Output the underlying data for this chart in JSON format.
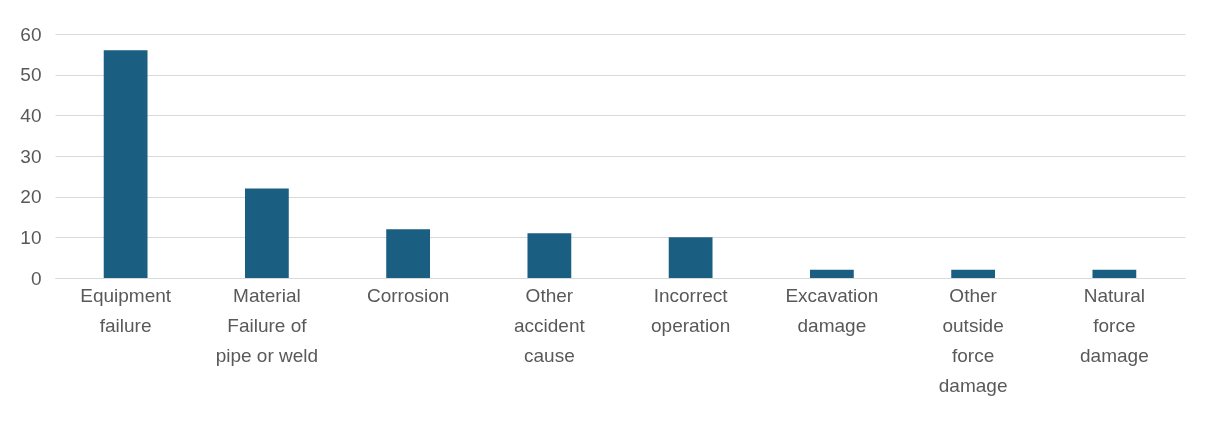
{
  "chart_data": {
    "type": "bar",
    "categories": [
      "Equipment failure",
      "Material Failure of pipe or weld",
      "Corrosion",
      "Other accident cause",
      "Incorrect operation",
      "Excavation damage",
      "Other outside force damage",
      "Natural force damage"
    ],
    "values": [
      56,
      22,
      12,
      11,
      10,
      2,
      2,
      2
    ],
    "color": "#1a5f81",
    "ylim": [
      0,
      60
    ],
    "yticks": [
      0,
      10,
      20,
      30,
      40,
      50,
      60
    ],
    "grid": "y"
  }
}
